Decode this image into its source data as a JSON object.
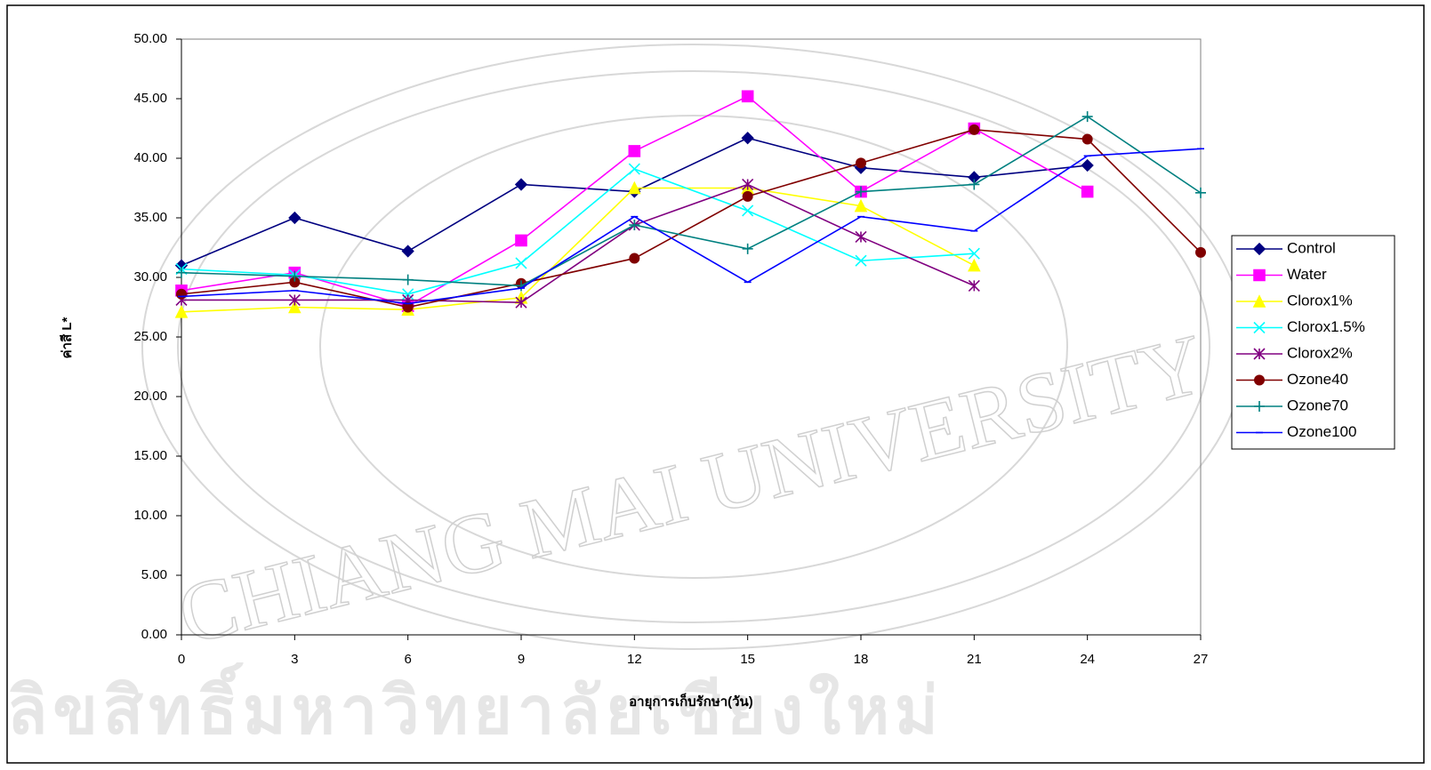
{
  "chart_data": {
    "type": "line",
    "x_label": "อายุการเก็บรักษา(วัน)",
    "y_label": "ค่าสี L*",
    "watermark": "CHIANG MAI UNIVERSITY",
    "footer_watermark": "ลิขสิทธิ์มหาวิทยาลัยเชียงใหม่",
    "x": [
      0,
      3,
      6,
      9,
      12,
      15,
      18,
      21,
      24,
      27
    ],
    "xlim": [
      0,
      27
    ],
    "xticks": [
      0,
      3,
      6,
      9,
      12,
      15,
      18,
      21,
      24,
      27
    ],
    "ylim": [
      0,
      50
    ],
    "yticks": [
      {
        "value": 0,
        "label": "0.00"
      },
      {
        "value": 5,
        "label": "5.00"
      },
      {
        "value": 10,
        "label": "10.00"
      },
      {
        "value": 15,
        "label": "15.00"
      },
      {
        "value": 20,
        "label": "20.00"
      },
      {
        "value": 25,
        "label": "25.00"
      },
      {
        "value": 30,
        "label": "30.00"
      },
      {
        "value": 35,
        "label": "35.00"
      },
      {
        "value": 40,
        "label": "40.00"
      },
      {
        "value": 45,
        "label": "45.00"
      },
      {
        "value": 50,
        "label": "50.00"
      }
    ],
    "legend": "right",
    "series": [
      {
        "name": "Control",
        "color": "#000080",
        "marker": "diamond",
        "values": [
          31.0,
          35.0,
          32.2,
          37.8,
          37.2,
          41.7,
          39.2,
          38.4,
          39.4,
          null
        ]
      },
      {
        "name": "Water",
        "color": "#ff00ff",
        "marker": "square",
        "values": [
          28.9,
          30.4,
          27.6,
          33.1,
          40.6,
          45.2,
          37.2,
          42.5,
          37.2,
          null
        ]
      },
      {
        "name": "Clorox1%",
        "color": "#ffff00",
        "marker": "triangle",
        "values": [
          27.1,
          27.5,
          27.3,
          28.3,
          37.5,
          37.5,
          36.0,
          31.0,
          null,
          null
        ]
      },
      {
        "name": "Clorox1.5%",
        "color": "#00ffff",
        "marker": "x",
        "values": [
          30.7,
          30.2,
          28.6,
          31.2,
          39.1,
          35.6,
          31.4,
          32.0,
          null,
          null
        ]
      },
      {
        "name": "Clorox2%",
        "color": "#800080",
        "marker": "star",
        "values": [
          28.1,
          28.1,
          28.1,
          27.9,
          34.4,
          37.8,
          33.4,
          29.3,
          null,
          null
        ]
      },
      {
        "name": "Ozone40",
        "color": "#800000",
        "marker": "circle",
        "values": [
          28.6,
          29.6,
          27.5,
          29.5,
          31.6,
          36.8,
          39.6,
          42.4,
          41.6,
          32.1
        ]
      },
      {
        "name": "Ozone70",
        "color": "#008080",
        "marker": "plus",
        "values": [
          30.4,
          30.1,
          29.8,
          29.3,
          34.4,
          32.4,
          37.2,
          37.8,
          43.5,
          37.1
        ]
      },
      {
        "name": "Ozone100",
        "color": "#0000ff",
        "marker": "dash",
        "values": [
          28.4,
          28.9,
          27.8,
          29.1,
          35.1,
          29.6,
          35.1,
          33.9,
          40.2,
          40.8
        ]
      }
    ]
  }
}
